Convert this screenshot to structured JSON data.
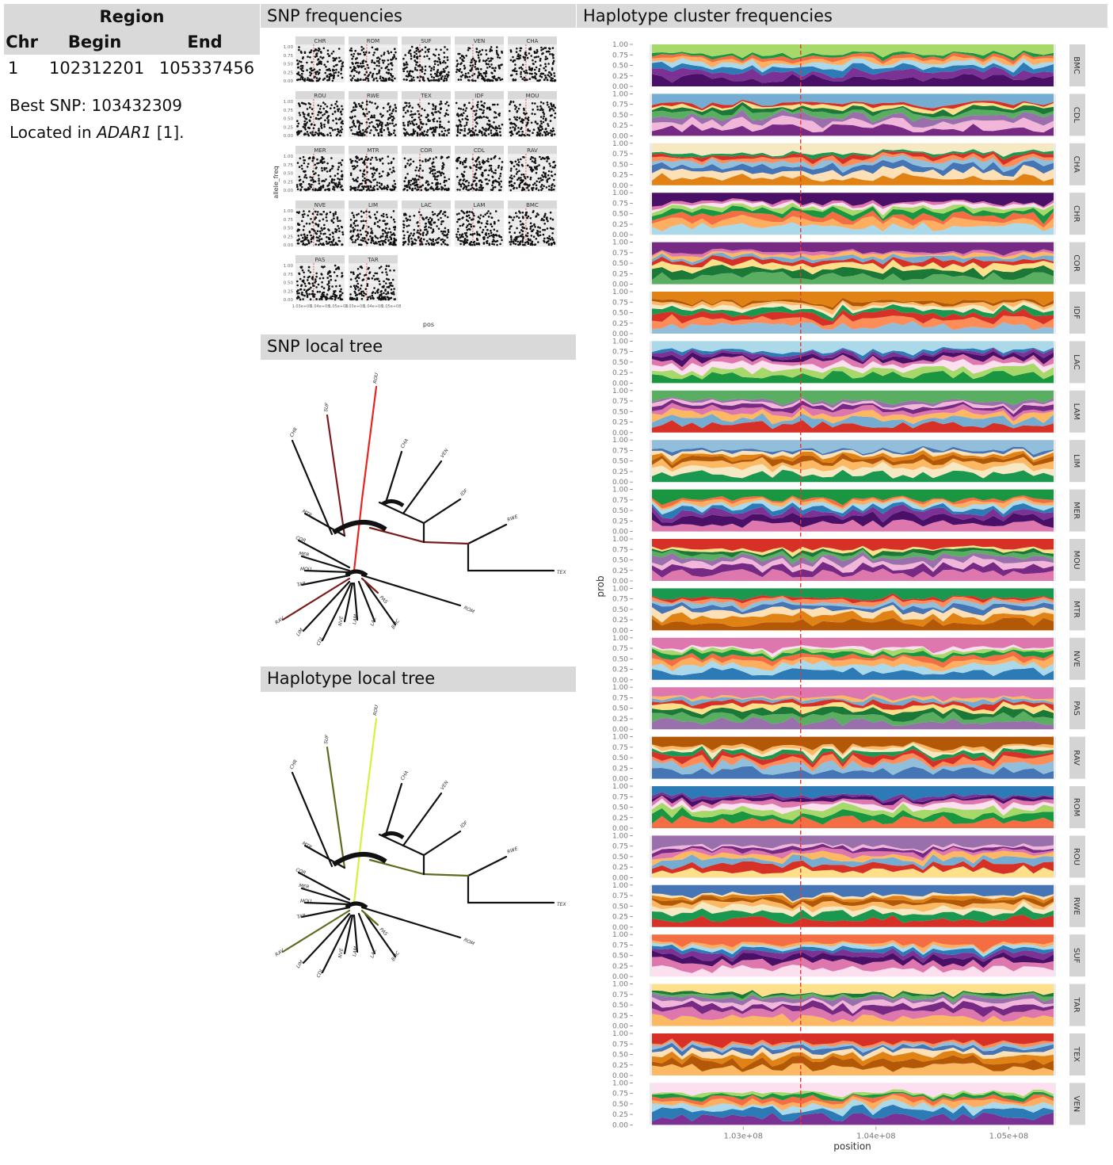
{
  "region": {
    "title": "Region",
    "columns": [
      "Chr",
      "Begin",
      "End"
    ],
    "row": [
      "1",
      "102312201",
      "105337456"
    ]
  },
  "best_snp": {
    "label": "Best SNP:",
    "value": "103432309"
  },
  "located": {
    "prefix": "Located in",
    "gene": "ADAR1",
    "ref": "[1]."
  },
  "sections": {
    "snp_freq": "SNP frequencies",
    "snp_tree": "SNP local tree",
    "hap_tree": "Haplotype local tree",
    "hap_freq": "Haplotype cluster frequencies"
  },
  "chart_data": [
    {
      "type": "scatter",
      "panels": [
        "CHR",
        "ROM",
        "SUF",
        "VEN",
        "CHA",
        "ROU",
        "RWE",
        "TEX",
        "IDF",
        "MOU",
        "MER",
        "MTR",
        "COR",
        "CDL",
        "RAV",
        "NVE",
        "LIM",
        "LAC",
        "LAM",
        "BMC",
        "PAS",
        "TAR"
      ],
      "xlabel": "pos",
      "ylabel": "allele_freq",
      "yticks": [
        "0.00",
        "0.25",
        "0.50",
        "0.75",
        "1.00"
      ],
      "xticks": [
        "1.03e+08",
        "1.04e+08",
        "1.05e+08"
      ]
    },
    {
      "type": "area",
      "panels": [
        "BMC",
        "CDL",
        "CHA",
        "CHR",
        "COR",
        "IDF",
        "LAC",
        "LAM",
        "LIM",
        "MER",
        "MOU",
        "MTR",
        "NVE",
        "PAS",
        "RAV",
        "ROM",
        "ROU",
        "RWE",
        "SUF",
        "TAR",
        "TEX",
        "VEN"
      ],
      "xlabel": "position",
      "ylabel": "prob",
      "yticks": [
        "0.00",
        "0.25",
        "0.50",
        "0.75",
        "1.00"
      ],
      "xticks": [
        "1.03e+08",
        "1.04e+08",
        "1.05e+08"
      ],
      "best_snp_marker": 103432309,
      "xlim": [
        102312201,
        105337456
      ]
    }
  ],
  "snp_tree": {
    "leaves": [
      "ROU",
      "SUF",
      "CHR",
      "CHA",
      "VEN",
      "IDF",
      "RWE",
      "TEX",
      "MTR",
      "COR",
      "MER",
      "MOU",
      "TAR",
      "RAV",
      "LIM",
      "CDL",
      "NVE",
      "LAM",
      "LAC",
      "BMC",
      "PAS",
      "ROM"
    ]
  },
  "hap_tree": {
    "leaves": [
      "ROU",
      "SUF",
      "CHR",
      "CHA",
      "VEN",
      "IDF",
      "RWE",
      "TEX",
      "MTR",
      "COR",
      "MER",
      "MOU",
      "TAR",
      "RAV",
      "LIM",
      "CDL",
      "NVE",
      "LAM",
      "LAC",
      "BMC",
      "PAS",
      "ROM"
    ]
  },
  "colors": {
    "header_bg": "#d9d9d9",
    "marker": "#e53935"
  }
}
